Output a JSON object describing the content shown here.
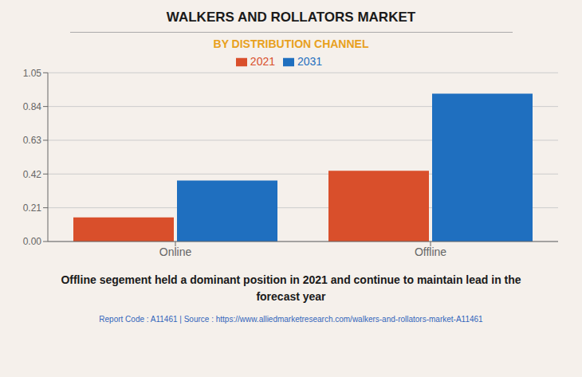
{
  "chart_data": {
    "type": "bar",
    "title": "WALKERS AND ROLLATORS MARKET",
    "subtitle": "BY DISTRIBUTION CHANNEL",
    "categories": [
      "Online",
      "Offline"
    ],
    "series": [
      {
        "name": "2021",
        "color": "#D94F2B",
        "values": [
          0.15,
          0.44
        ]
      },
      {
        "name": "2031",
        "color": "#1F6FBF",
        "values": [
          0.38,
          0.92
        ]
      }
    ],
    "ylim": [
      0,
      1.05
    ],
    "yticks": [
      {
        "value": 0,
        "label": "0.00"
      },
      0.21,
      0.42,
      0.63,
      0.84,
      1.05
    ],
    "grid": true,
    "legend": "top",
    "annotations": [
      "Offline segement held a dominant position in 2021 and continue to maintain lead in the\nforecast year",
      "Report Code : A11461  |  Source : https://www.alliedmarketresearch.com/walkers-and-rollators-market-A11461"
    ]
  }
}
